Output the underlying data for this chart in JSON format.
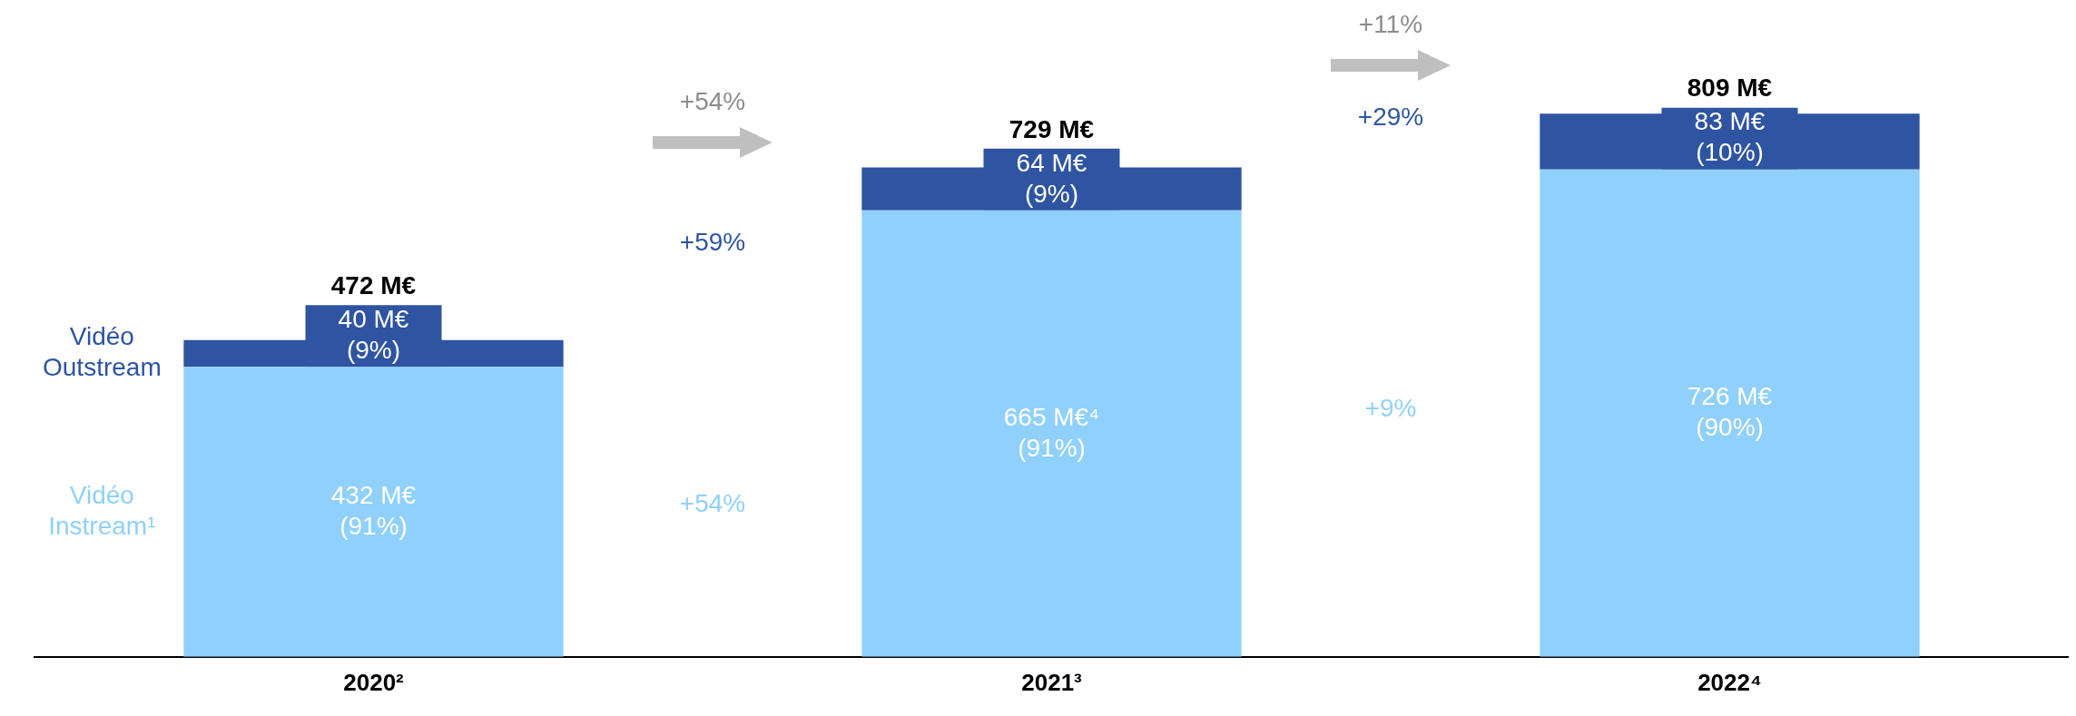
{
  "chart_data": {
    "type": "bar",
    "stacked": true,
    "categories": [
      "2020²",
      "2021³",
      "2022⁴"
    ],
    "series": [
      {
        "name": "Vidéo Instream¹",
        "color": "#90d0fc",
        "values": [
          432,
          665,
          726
        ],
        "value_labels": [
          "432 M€\n(91%)",
          "665 M€⁴\n(91%)",
          "726 M€\n(90%)"
        ]
      },
      {
        "name": "Vidéo Outstream",
        "color": "#2e54a2",
        "values": [
          40,
          64,
          83
        ],
        "value_labels": [
          "40 M€\n(9%)",
          "64 M€\n(9%)",
          "83 M€\n(10%)"
        ]
      }
    ],
    "totals": [
      "472 M€",
      "729 M€",
      "809 M€"
    ],
    "annotations": [
      "+54%",
      "+11%",
      "+59%",
      "+29%",
      "+54%",
      "+9%"
    ],
    "legend": false,
    "grid": false
  }
}
